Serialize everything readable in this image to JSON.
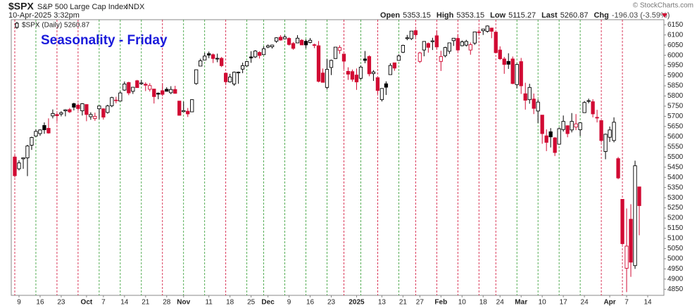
{
  "header": {
    "symbol": "$SPX",
    "name": "S&P 500 Large Cap Index",
    "exchange": "INDX",
    "timestamp": "10-Apr-2025 3:32pm",
    "credit": "© StockCharts.com",
    "quote": [
      {
        "label": "Open",
        "value": "5353.15"
      },
      {
        "label": "High",
        "value": "5353.15"
      },
      {
        "label": "Low",
        "value": "5115.27"
      },
      {
        "label": "Last",
        "value": "5260.87"
      },
      {
        "label": "Chg",
        "value": "-196.03 (-3.59%)"
      }
    ]
  },
  "chart_data": {
    "type": "candlestick",
    "legend": "$SPX (Daily) 5260.87",
    "annotation": "Seasonality - Friday",
    "up_color": "#000000",
    "down_color": "#d10a33",
    "friday_up_color": "#2e9a2e",
    "friday_down_color": "#d10a33",
    "annotation_color": "#1a1adb",
    "ylim": [
      4820,
      6175
    ],
    "yticks": [
      4850,
      4900,
      4950,
      5000,
      5050,
      5100,
      5150,
      5200,
      5250,
      5300,
      5350,
      5400,
      5450,
      5500,
      5550,
      5600,
      5650,
      5700,
      5750,
      5800,
      5850,
      5900,
      5950,
      6000,
      6050,
      6100,
      6150
    ],
    "categories": [
      null,
      "9",
      null,
      null,
      null,
      null,
      "16",
      null,
      null,
      null,
      null,
      "23",
      null,
      null,
      null,
      null,
      null,
      "Oct",
      null,
      null,
      null,
      "7",
      null,
      null,
      null,
      null,
      "14",
      null,
      null,
      null,
      null,
      "21",
      null,
      null,
      null,
      null,
      "28",
      null,
      null,
      null,
      "Nov",
      null,
      null,
      null,
      null,
      null,
      "11",
      null,
      null,
      null,
      null,
      "18",
      null,
      null,
      null,
      null,
      "25",
      null,
      null,
      null,
      "Dec",
      null,
      null,
      null,
      null,
      "9",
      null,
      null,
      null,
      null,
      "16",
      null,
      null,
      null,
      null,
      "23",
      null,
      null,
      null,
      null,
      null,
      "2025",
      null,
      null,
      null,
      null,
      null,
      "13",
      null,
      null,
      null,
      null,
      "21",
      null,
      null,
      null,
      "27",
      null,
      null,
      null,
      null,
      "Feb",
      null,
      null,
      null,
      null,
      "10",
      null,
      null,
      null,
      null,
      "18",
      null,
      null,
      null,
      "24",
      null,
      null,
      null,
      null,
      "Mar",
      null,
      null,
      null,
      null,
      "10",
      null,
      null,
      null,
      null,
      "17",
      null,
      null,
      null,
      null,
      "24",
      null,
      null,
      null,
      null,
      null,
      "Apr",
      null,
      null,
      null,
      "7",
      null,
      null,
      null,
      null,
      "14"
    ],
    "ohlc": [
      [
        5500,
        5510,
        5400,
        5408
      ],
      [
        5442,
        5484,
        5434,
        5471
      ],
      [
        5491,
        5497,
        5442,
        5496
      ],
      [
        5496,
        5560,
        5406,
        5554
      ],
      [
        5558,
        5600,
        5535,
        5596
      ],
      [
        5603,
        5636,
        5600,
        5626
      ],
      [
        5615,
        5636,
        5604,
        5633
      ],
      [
        5655,
        5670,
        5614,
        5634
      ],
      [
        5641,
        5690,
        5615,
        5618
      ],
      [
        5702,
        5734,
        5690,
        5714
      ],
      [
        5709,
        5715,
        5675,
        5703
      ],
      [
        5711,
        5725,
        5700,
        5718
      ],
      [
        5727,
        5735,
        5700,
        5732
      ],
      [
        5733,
        5741,
        5716,
        5722
      ],
      [
        5762,
        5767,
        5729,
        5745
      ],
      [
        5755,
        5764,
        5727,
        5738
      ],
      [
        5727,
        5765,
        5704,
        5762
      ],
      [
        5758,
        5759,
        5676,
        5709
      ],
      [
        5698,
        5720,
        5683,
        5709
      ],
      [
        5689,
        5718,
        5678,
        5700
      ],
      [
        5737,
        5751,
        5686,
        5751
      ],
      [
        5737,
        5739,
        5684,
        5696
      ],
      [
        5719,
        5757,
        5713,
        5751
      ],
      [
        5752,
        5796,
        5745,
        5792
      ],
      [
        5778,
        5796,
        5764,
        5780
      ],
      [
        5775,
        5823,
        5774,
        5815
      ],
      [
        5829,
        5871,
        5825,
        5859
      ],
      [
        5866,
        5870,
        5804,
        5815
      ],
      [
        5823,
        5843,
        5810,
        5843
      ],
      [
        5875,
        5879,
        5841,
        5841
      ],
      [
        5860,
        5878,
        5855,
        5864
      ],
      [
        5858,
        5867,
        5824,
        5853
      ],
      [
        5833,
        5863,
        5822,
        5851
      ],
      [
        5834,
        5835,
        5763,
        5797
      ],
      [
        5814,
        5817,
        5784,
        5809
      ],
      [
        5826,
        5862,
        5799,
        5808
      ],
      [
        5833,
        5843,
        5823,
        5823
      ],
      [
        5816,
        5848,
        5809,
        5832
      ],
      [
        5832,
        5850,
        5811,
        5813
      ],
      [
        5775,
        5775,
        5703,
        5705
      ],
      [
        5723,
        5772,
        5723,
        5728
      ],
      [
        5725,
        5741,
        5697,
        5712
      ],
      [
        5722,
        5784,
        5722,
        5782
      ],
      [
        5861,
        5929,
        5855,
        5929
      ],
      [
        5947,
        5983,
        5947,
        5973
      ],
      [
        5977,
        6012,
        5976,
        5996
      ],
      [
        6008,
        6018,
        5986,
        6001
      ],
      [
        6003,
        6009,
        5962,
        5984
      ],
      [
        5985,
        6008,
        5966,
        5985
      ],
      [
        5985,
        5992,
        5942,
        5949
      ],
      [
        5912,
        5915,
        5853,
        5870
      ],
      [
        5869,
        5909,
        5866,
        5893
      ],
      [
        5859,
        5920,
        5850,
        5917
      ],
      [
        5917,
        5920,
        5860,
        5917
      ],
      [
        5932,
        5964,
        5912,
        5949
      ],
      [
        5948,
        5972,
        5944,
        5969
      ],
      [
        5992,
        6020,
        5963,
        5987
      ],
      [
        5992,
        6025,
        5987,
        6021
      ],
      [
        6014,
        6020,
        5984,
        5999
      ],
      [
        6003,
        6044,
        6003,
        6032
      ],
      [
        6040,
        6053,
        6035,
        6047
      ],
      [
        6042,
        6052,
        6033,
        6050
      ],
      [
        6069,
        6089,
        6061,
        6086
      ],
      [
        6089,
        6099,
        6072,
        6075
      ],
      [
        6081,
        6099,
        6079,
        6090
      ],
      [
        6083,
        6088,
        6048,
        6053
      ],
      [
        6058,
        6065,
        6027,
        6034
      ],
      [
        6061,
        6099,
        6060,
        6084
      ],
      [
        6074,
        6079,
        6051,
        6051
      ],
      [
        6069,
        6078,
        6034,
        6051
      ],
      [
        6063,
        6085,
        6059,
        6074
      ],
      [
        6052,
        6057,
        6035,
        6050
      ],
      [
        6047,
        6070,
        5867,
        5872
      ],
      [
        5913,
        5935,
        5866,
        5867
      ],
      [
        5842,
        5982,
        5832,
        5931
      ],
      [
        5940,
        5979,
        5903,
        5975
      ],
      [
        5984,
        6040,
        5982,
        6040
      ],
      [
        6024,
        6049,
        6007,
        6038
      ],
      [
        6006,
        6006,
        5933,
        5971
      ],
      [
        5921,
        5941,
        5879,
        5907
      ],
      [
        5920,
        5930,
        5870,
        5882
      ],
      [
        5903,
        5935,
        5830,
        5869
      ],
      [
        5887,
        5950,
        5880,
        5942
      ],
      [
        5982,
        6021,
        5961,
        5975
      ],
      [
        5994,
        6000,
        5897,
        5909
      ],
      [
        5910,
        5927,
        5874,
        5918
      ],
      [
        5890,
        5890,
        5809,
        5827
      ],
      [
        5782,
        5837,
        5773,
        5837
      ],
      [
        5860,
        5872,
        5805,
        5843
      ],
      [
        5905,
        5961,
        5905,
        5950
      ],
      [
        5963,
        5964,
        5924,
        5937
      ],
      [
        5975,
        6005,
        5974,
        5997
      ],
      [
        6015,
        6052,
        6011,
        6049
      ],
      [
        6082,
        6100,
        6074,
        6086
      ],
      [
        6082,
        6119,
        6075,
        6119
      ],
      [
        6121,
        6128,
        6089,
        6101
      ],
      [
        5970,
        6017,
        5962,
        6012
      ],
      [
        6026,
        6069,
        5995,
        6068
      ],
      [
        6058,
        6063,
        6013,
        6039
      ],
      [
        6067,
        6086,
        6026,
        6071
      ],
      [
        6096,
        6121,
        6031,
        6041
      ],
      [
        5970,
        6022,
        5923,
        5994
      ],
      [
        5998,
        6042,
        5990,
        6038
      ],
      [
        6020,
        6062,
        6007,
        6061
      ],
      [
        6072,
        6084,
        6046,
        6084
      ],
      [
        6083,
        6101,
        6020,
        6026
      ],
      [
        6047,
        6073,
        6044,
        6066
      ],
      [
        6050,
        6076,
        6043,
        6068
      ],
      [
        6026,
        6063,
        6003,
        6052
      ],
      [
        6060,
        6116,
        6051,
        6115
      ],
      [
        6115,
        6127,
        6104,
        6114
      ],
      [
        6121,
        6129,
        6100,
        6129
      ],
      [
        6118,
        6147,
        6111,
        6144
      ],
      [
        6134,
        6134,
        6084,
        6118
      ],
      [
        6114,
        6114,
        6009,
        6013
      ],
      [
        6026,
        6044,
        5977,
        5983
      ],
      [
        5982,
        5992,
        5909,
        5955
      ],
      [
        5970,
        6010,
        5933,
        5956
      ],
      [
        5982,
        5994,
        5858,
        5861
      ],
      [
        5856,
        5959,
        5837,
        5955
      ],
      [
        5969,
        5987,
        5810,
        5850
      ],
      [
        5811,
        5865,
        5733,
        5779
      ],
      [
        5782,
        5860,
        5762,
        5842
      ],
      [
        5785,
        5812,
        5711,
        5739
      ],
      [
        5726,
        5783,
        5667,
        5770
      ],
      [
        5706,
        5706,
        5565,
        5615
      ],
      [
        5604,
        5636,
        5529,
        5572
      ],
      [
        5624,
        5642,
        5547,
        5599
      ],
      [
        5594,
        5598,
        5505,
        5522
      ],
      [
        5563,
        5645,
        5563,
        5639
      ],
      [
        5635,
        5704,
        5625,
        5675
      ],
      [
        5654,
        5654,
        5597,
        5615
      ],
      [
        5633,
        5716,
        5621,
        5675
      ],
      [
        5647,
        5711,
        5632,
        5663
      ],
      [
        5634,
        5670,
        5603,
        5668
      ],
      [
        5718,
        5775,
        5718,
        5768
      ],
      [
        5776,
        5787,
        5764,
        5777
      ],
      [
        5772,
        5784,
        5695,
        5712
      ],
      [
        5695,
        5732,
        5670,
        5693
      ],
      [
        5679,
        5680,
        5572,
        5581
      ],
      [
        5527,
        5615,
        5489,
        5612
      ],
      [
        5597,
        5650,
        5574,
        5633
      ],
      [
        5581,
        5695,
        5572,
        5671
      ],
      [
        5492,
        5500,
        5391,
        5397
      ],
      [
        5292,
        5293,
        5069,
        5074
      ],
      [
        4953,
        5247,
        4836,
        5062
      ],
      [
        5194,
        5268,
        4911,
        4983
      ],
      [
        4966,
        5482,
        4950,
        5457
      ],
      [
        5353.15,
        5353.15,
        5115.27,
        5260.87
      ],
      null,
      null
    ]
  }
}
